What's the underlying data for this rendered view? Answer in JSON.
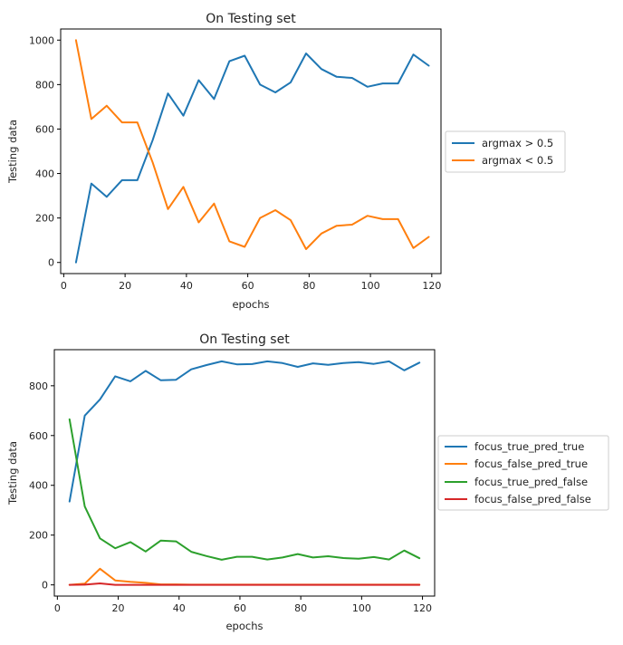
{
  "chart_data": [
    {
      "type": "line",
      "title": "On Testing set",
      "xlabel": "epochs",
      "ylabel": "Testing data",
      "xlim": [
        -1,
        123
      ],
      "ylim": [
        -50,
        1050
      ],
      "xticks": [
        0,
        20,
        40,
        60,
        80,
        100,
        120
      ],
      "yticks": [
        0,
        200,
        400,
        600,
        800,
        1000
      ],
      "grid": false,
      "legend": "outside-right",
      "x": [
        4,
        9,
        14,
        19,
        24,
        29,
        34,
        39,
        44,
        49,
        54,
        59,
        64,
        69,
        74,
        79,
        84,
        89,
        94,
        99,
        104,
        109,
        114,
        119
      ],
      "series": [
        {
          "name": "argmax > 0.5",
          "color": "#1f77b4",
          "values": [
            0,
            355,
            295,
            370,
            370,
            550,
            760,
            660,
            820,
            735,
            905,
            930,
            800,
            765,
            810,
            940,
            870,
            835,
            830,
            790,
            805,
            805,
            935,
            885
          ]
        },
        {
          "name": "argmax < 0.5",
          "color": "#ff7f0e",
          "values": [
            1000,
            645,
            705,
            630,
            630,
            450,
            240,
            340,
            180,
            265,
            95,
            70,
            200,
            235,
            190,
            60,
            130,
            165,
            170,
            210,
            195,
            195,
            65,
            115
          ]
        }
      ]
    },
    {
      "type": "line",
      "title": "On Testing set",
      "xlabel": "epochs",
      "ylabel": "Testing data",
      "xlim": [
        -1,
        124
      ],
      "ylim": [
        -45,
        945
      ],
      "xticks": [
        0,
        20,
        40,
        60,
        80,
        100,
        120
      ],
      "yticks": [
        0,
        200,
        400,
        600,
        800
      ],
      "grid": false,
      "legend": "outside-right",
      "x": [
        4,
        9,
        14,
        19,
        24,
        29,
        34,
        39,
        44,
        49,
        54,
        59,
        64,
        69,
        74,
        79,
        84,
        89,
        94,
        99,
        104,
        109,
        114,
        119
      ],
      "series": [
        {
          "name": "focus_true_pred_true",
          "color": "#1f77b4",
          "values": [
            335,
            680,
            745,
            838,
            818,
            860,
            822,
            824,
            866,
            883,
            898,
            886,
            887,
            898,
            891,
            876,
            890,
            884,
            891,
            895,
            888,
            898,
            862,
            893
          ]
        },
        {
          "name": "focus_false_pred_true",
          "color": "#ff7f0e",
          "values": [
            0,
            5,
            65,
            18,
            12,
            8,
            2,
            2,
            1,
            1,
            1,
            1,
            1,
            1,
            1,
            1,
            1,
            1,
            1,
            1,
            1,
            1,
            1,
            1
          ]
        },
        {
          "name": "focus_true_pred_false",
          "color": "#2ca02c",
          "values": [
            665,
            315,
            187,
            147,
            172,
            134,
            178,
            175,
            133,
            116,
            101,
            113,
            113,
            102,
            110,
            124,
            110,
            115,
            108,
            105,
            112,
            102,
            138,
            107
          ]
        },
        {
          "name": "focus_false_pred_false",
          "color": "#d62728",
          "values": [
            0,
            1,
            6,
            0,
            0,
            0,
            0,
            0,
            0,
            0,
            0,
            0,
            0,
            0,
            0,
            0,
            0,
            0,
            0,
            0,
            0,
            0,
            0,
            0
          ]
        }
      ]
    }
  ]
}
